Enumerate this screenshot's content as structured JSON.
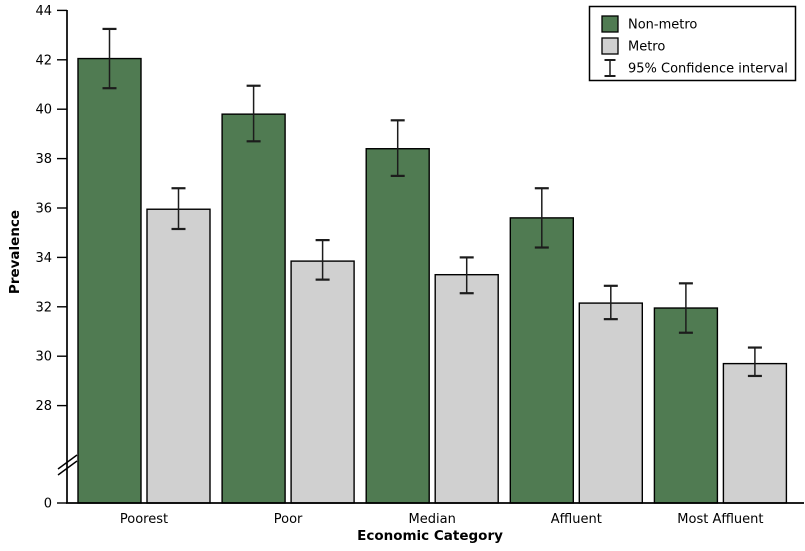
{
  "chart_data": {
    "type": "bar",
    "title": "",
    "xlabel": "Economic Category",
    "ylabel": "Prevalence",
    "categories": [
      "Poorest",
      "Poor",
      "Median",
      "Affluent",
      "Most Affluent"
    ],
    "series": [
      {
        "name": "Non-metro",
        "color": "#507b52",
        "values": [
          42.05,
          39.8,
          38.4,
          35.6,
          31.95
        ],
        "ci_low": [
          40.85,
          38.7,
          37.3,
          34.4,
          30.95
        ],
        "ci_high": [
          43.25,
          40.95,
          39.55,
          36.8,
          32.95
        ]
      },
      {
        "name": "Metro",
        "color": "#d0d0d0",
        "values": [
          35.95,
          33.85,
          33.3,
          32.15,
          29.7
        ],
        "ci_low": [
          35.15,
          33.1,
          32.55,
          31.5,
          29.2
        ],
        "ci_high": [
          36.8,
          34.7,
          34.0,
          32.85,
          30.35
        ]
      }
    ],
    "error_bars": "95% Confidence interval",
    "legend": {
      "position": "top-right",
      "entries": [
        "Non-metro",
        "Metro"
      ],
      "ci_label": "95% Confidence interval"
    },
    "y_ticks": [
      0,
      28,
      30,
      32,
      34,
      36,
      38,
      40,
      42,
      44
    ],
    "ylim": [
      0,
      44
    ],
    "ylim_display": [
      28,
      44
    ],
    "axis_break": true,
    "grid": false,
    "colors": {
      "bar_edge": "#000000",
      "error_bar": "#1c1c1c",
      "axis": "#000000",
      "background": "#ffffff",
      "legend_border": "#000000"
    }
  }
}
